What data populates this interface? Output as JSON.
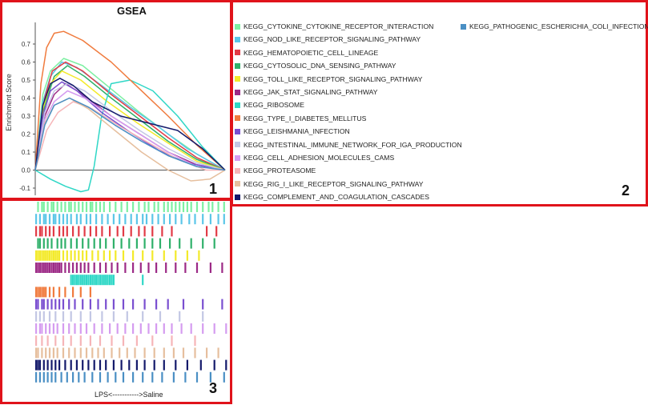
{
  "panels": {
    "p1": "1",
    "p2": "2",
    "p3": "3"
  },
  "colors": {
    "frame": "#e0131b"
  },
  "chart_data": {
    "type": "line",
    "title": "GSEA",
    "ylabel": "Enrichment Score",
    "xlabel": "",
    "ylim": [
      -0.14,
      0.82
    ],
    "yticks": [
      -0.1,
      0.0,
      0.1,
      0.2,
      0.3,
      0.4,
      0.5,
      0.6,
      0.7
    ],
    "x_range": [
      0,
      100
    ],
    "grid": false,
    "legend_position": "right",
    "rug_caption": "LPS<----------->Saline",
    "series": [
      {
        "name": "KEGG_CYTOKINE_CYTOKINE_RECEPTOR_INTERACTION",
        "color": "#7df0a2",
        "x": [
          0,
          4,
          8,
          15,
          25,
          40,
          55,
          70,
          85,
          100
        ],
        "y": [
          0,
          0.42,
          0.55,
          0.62,
          0.58,
          0.45,
          0.32,
          0.2,
          0.09,
          0
        ]
      },
      {
        "name": "KEGG_NOD_LIKE_RECEPTOR_SIGNALING_PATHWAY",
        "color": "#5bc6e8",
        "x": [
          0,
          4,
          8,
          14,
          22,
          35,
          50,
          65,
          80,
          100
        ],
        "y": [
          0,
          0.38,
          0.52,
          0.6,
          0.57,
          0.47,
          0.35,
          0.24,
          0.12,
          0
        ]
      },
      {
        "name": "KEGG_HEMATOPOIETIC_CELL_LINEAGE",
        "color": "#e23b46",
        "x": [
          0,
          5,
          9,
          16,
          25,
          40,
          55,
          70,
          85,
          100
        ],
        "y": [
          0,
          0.4,
          0.55,
          0.6,
          0.55,
          0.42,
          0.3,
          0.18,
          0.07,
          0
        ]
      },
      {
        "name": "KEGG_CYTOSOLIC_DNA_SENSING_PATHWAY",
        "color": "#2fb06a",
        "x": [
          0,
          5,
          10,
          17,
          26,
          40,
          55,
          70,
          85,
          100
        ],
        "y": [
          0,
          0.36,
          0.52,
          0.58,
          0.52,
          0.4,
          0.28,
          0.16,
          0.06,
          0
        ]
      },
      {
        "name": "KEGG_TOLL_LIKE_RECEPTOR_SIGNALING_PATHWAY",
        "color": "#f3ea2a",
        "x": [
          0,
          4,
          8,
          14,
          24,
          38,
          54,
          70,
          85,
          100
        ],
        "y": [
          0,
          0.34,
          0.48,
          0.55,
          0.5,
          0.38,
          0.26,
          0.15,
          0.05,
          0
        ]
      },
      {
        "name": "KEGG_JAK_STAT_SIGNALING_PATHWAY",
        "color": "#9c2a86",
        "x": [
          0,
          5,
          10,
          16,
          25,
          40,
          55,
          70,
          85,
          100
        ],
        "y": [
          0,
          0.3,
          0.42,
          0.48,
          0.42,
          0.3,
          0.2,
          0.1,
          0.03,
          0
        ]
      },
      {
        "name": "KEGG_RIBOSOME",
        "color": "#2fd7c6",
        "x": [
          0,
          8,
          16,
          24,
          28,
          31,
          35,
          40,
          50,
          62,
          75,
          88,
          100
        ],
        "y": [
          0,
          -0.05,
          -0.09,
          -0.12,
          -0.11,
          0.02,
          0.3,
          0.48,
          0.5,
          0.44,
          0.3,
          0.13,
          0
        ]
      },
      {
        "name": "KEGG_TYPE_I_DIABETES_MELLITUS",
        "color": "#f07b3e",
        "x": [
          0,
          3,
          6,
          10,
          15,
          25,
          40,
          55,
          70,
          85,
          100
        ],
        "y": [
          0,
          0.48,
          0.68,
          0.76,
          0.77,
          0.72,
          0.6,
          0.45,
          0.3,
          0.14,
          0
        ]
      },
      {
        "name": "KEGG_LEISHMANIA_INFECTION",
        "color": "#7a4fd0",
        "x": [
          0,
          4,
          8,
          14,
          22,
          35,
          50,
          65,
          80,
          100
        ],
        "y": [
          0,
          0.3,
          0.44,
          0.49,
          0.44,
          0.32,
          0.21,
          0.11,
          0.04,
          0
        ]
      },
      {
        "name": "KEGG_INTESTINAL_IMMUNE_NETWORK_FOR_IGA_PRODUCTION",
        "color": "#c3c7e4",
        "x": [
          0,
          5,
          10,
          17,
          26,
          40,
          55,
          70,
          85,
          100
        ],
        "y": [
          0,
          0.32,
          0.44,
          0.48,
          0.44,
          0.33,
          0.22,
          0.12,
          0.04,
          0
        ]
      },
      {
        "name": "KEGG_CELL_ADHESION_MOLECULES_CAMS",
        "color": "#d59cf0",
        "x": [
          0,
          5,
          10,
          17,
          26,
          40,
          55,
          70,
          85,
          100
        ],
        "y": [
          0,
          0.28,
          0.38,
          0.44,
          0.4,
          0.3,
          0.2,
          0.1,
          0.02,
          0
        ]
      },
      {
        "name": "KEGG_PROTEASOME",
        "color": "#f6b5b8",
        "x": [
          0,
          6,
          12,
          20,
          30,
          45,
          60,
          75,
          90,
          100
        ],
        "y": [
          0,
          0.22,
          0.32,
          0.38,
          0.34,
          0.24,
          0.15,
          0.06,
          0,
          0
        ]
      },
      {
        "name": "KEGG_RIG_I_LIKE_RECEPTOR_SIGNALING_PATHWAY",
        "color": "#e6bf9e",
        "x": [
          0,
          5,
          10,
          18,
          28,
          42,
          56,
          70,
          82,
          92,
          100
        ],
        "y": [
          0,
          0.26,
          0.36,
          0.4,
          0.34,
          0.22,
          0.1,
          0.0,
          -0.06,
          -0.05,
          0
        ]
      },
      {
        "name": "KEGG_COMPLEMENT_AND_COAGULATION_CASCADES",
        "color": "#141a6b",
        "x": [
          0,
          4,
          8,
          13,
          20,
          30,
          45,
          60,
          75,
          88,
          100
        ],
        "y": [
          0,
          0.36,
          0.48,
          0.51,
          0.47,
          0.38,
          0.3,
          0.26,
          0.22,
          0.12,
          0
        ]
      },
      {
        "name": "KEGG_PATHOGENIC_ESCHERICHIA_COLI_INFECTION",
        "color": "#4a8fc4",
        "x": [
          0,
          5,
          10,
          18,
          28,
          42,
          56,
          70,
          85,
          100
        ],
        "y": [
          0,
          0.25,
          0.36,
          0.4,
          0.35,
          0.25,
          0.16,
          0.08,
          0.02,
          0
        ]
      }
    ],
    "rug": {
      "description_density": "hits",
      "rows": [
        {
          "color": "#7df0a2",
          "hits": [
            1,
            3,
            4,
            6,
            8,
            9,
            11,
            13,
            15,
            17,
            18,
            20,
            22,
            24,
            26,
            28,
            29,
            31,
            33,
            35,
            38,
            41,
            44,
            47,
            50,
            53,
            56,
            58,
            61,
            63,
            66,
            68,
            70,
            72,
            74,
            76,
            78,
            80,
            83,
            86,
            89,
            91,
            94,
            97
          ]
        },
        {
          "color": "#5bc6e8",
          "hits": [
            0,
            2,
            4,
            5,
            7,
            9,
            10,
            12,
            14,
            16,
            18,
            21,
            23,
            26,
            28,
            31,
            34,
            37,
            40,
            43,
            46,
            49,
            52,
            55,
            57,
            60,
            63,
            66,
            69,
            72,
            75,
            79,
            82,
            86,
            90,
            94,
            97
          ]
        },
        {
          "color": "#e23b46",
          "hits": [
            0,
            2,
            3,
            5,
            7,
            9,
            12,
            14,
            16,
            19,
            22,
            25,
            28,
            31,
            34,
            38,
            42,
            45,
            49,
            53,
            56,
            60,
            65,
            70,
            88,
            93
          ]
        },
        {
          "color": "#2fb06a",
          "hits": [
            1,
            2,
            4,
            6,
            8,
            11,
            13,
            15,
            18,
            21,
            24,
            27,
            30,
            33,
            36,
            40,
            44,
            48,
            52,
            56,
            60,
            64,
            69,
            74,
            80,
            86,
            92
          ]
        },
        {
          "color": "#f3ea2a",
          "hits": [
            0,
            1,
            2,
            3,
            4,
            5,
            6,
            7,
            8,
            9,
            10,
            11,
            12,
            14,
            16,
            18,
            20,
            22,
            24,
            26,
            29,
            32,
            35,
            38,
            41,
            45,
            50,
            55,
            60,
            66,
            72,
            78,
            84
          ]
        },
        {
          "color": "#9c2a86",
          "hits": [
            0,
            1,
            2,
            3,
            4,
            5,
            6,
            7,
            8,
            9,
            10,
            11,
            12,
            13,
            15,
            17,
            19,
            21,
            23,
            25,
            27,
            30,
            33,
            36,
            39,
            42,
            46,
            50,
            54,
            58,
            62,
            67,
            72,
            77,
            83,
            90,
            96
          ]
        },
        {
          "color": "#2fd7c6",
          "hits": [
            18,
            19,
            20,
            21,
            22,
            23,
            24,
            25,
            26,
            27,
            28,
            29,
            30,
            31,
            32,
            33,
            34,
            35,
            36,
            37,
            38,
            39,
            40,
            55
          ]
        },
        {
          "color": "#f07b3e",
          "hits": [
            0,
            1,
            2,
            3,
            4,
            5,
            7,
            9,
            12,
            15,
            19,
            23,
            28
          ]
        },
        {
          "color": "#7a4fd0",
          "hits": [
            0,
            1,
            3,
            4,
            6,
            8,
            10,
            12,
            14,
            17,
            20,
            24,
            28,
            32,
            36,
            40,
            45,
            50,
            56,
            62,
            68,
            76,
            86,
            96
          ]
        },
        {
          "color": "#c3c7e4",
          "hits": [
            0,
            2,
            4,
            7,
            10,
            14,
            18,
            23,
            28,
            34,
            40,
            47,
            55,
            64,
            74,
            86
          ]
        },
        {
          "color": "#d59cf0",
          "hits": [
            0,
            2,
            3,
            5,
            7,
            9,
            11,
            14,
            17,
            20,
            23,
            26,
            30,
            34,
            38,
            42,
            46,
            50,
            54,
            58,
            62,
            66,
            70,
            75,
            80,
            86,
            92,
            98
          ]
        },
        {
          "color": "#f6b5b8",
          "hits": [
            0,
            3,
            6,
            10,
            14,
            18,
            23,
            28,
            33,
            39,
            45,
            52,
            60,
            70,
            82
          ]
        },
        {
          "color": "#e6bf9e",
          "hits": [
            0,
            1,
            3,
            5,
            7,
            9,
            11,
            14,
            17,
            20,
            23,
            26,
            29,
            32,
            35,
            39,
            43,
            47,
            51,
            56,
            61,
            66,
            71,
            76,
            82,
            88,
            94
          ]
        },
        {
          "color": "#141a6b",
          "hits": [
            0,
            1,
            2,
            4,
            6,
            8,
            10,
            12,
            15,
            18,
            21,
            24,
            27,
            30,
            33,
            36,
            40,
            44,
            48,
            52,
            56,
            61,
            66,
            72,
            78,
            85,
            92,
            98
          ]
        },
        {
          "color": "#4a8fc4",
          "hits": [
            0,
            2,
            4,
            6,
            8,
            10,
            13,
            16,
            19,
            22,
            25,
            29,
            33,
            37,
            41,
            45,
            50,
            55,
            60,
            65,
            71,
            77,
            83,
            90,
            97
          ]
        }
      ]
    }
  }
}
